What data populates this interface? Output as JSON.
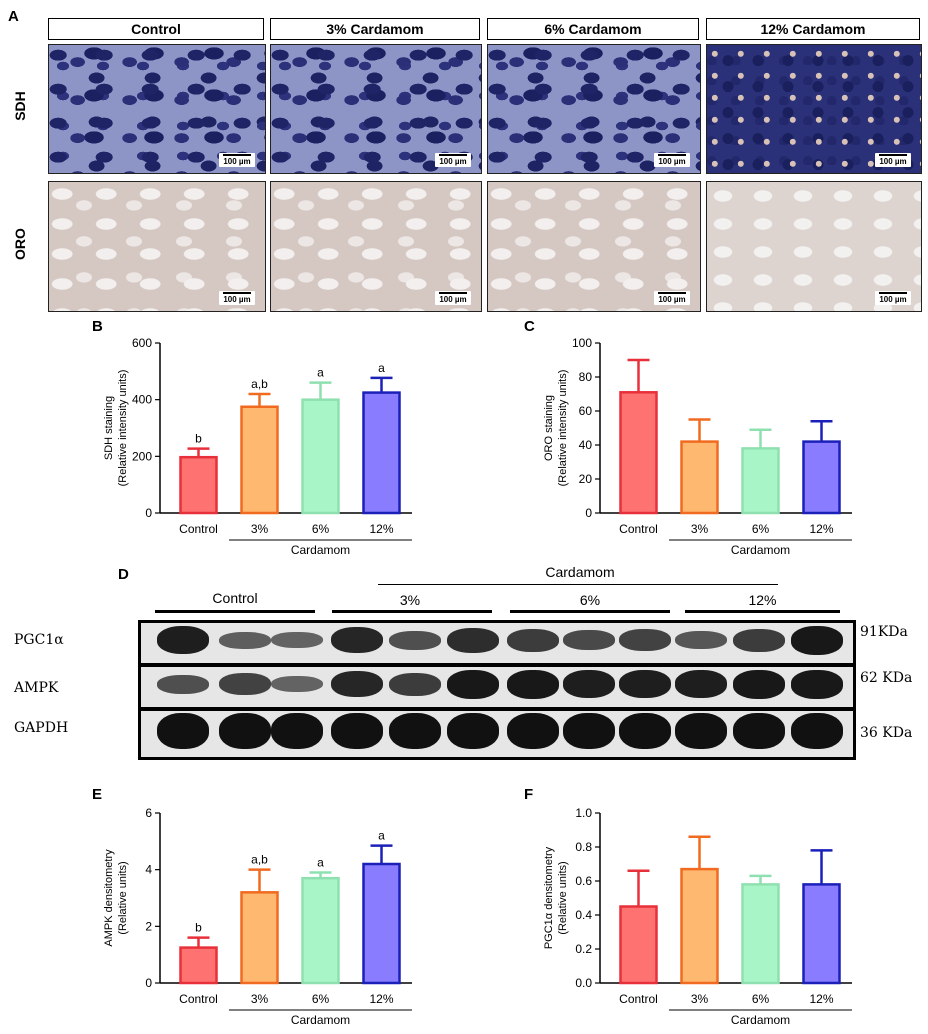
{
  "panel_a": {
    "letter": "A",
    "columns": [
      "Control",
      "3% Cardamom",
      "6% Cardamom",
      "12% Cardamom"
    ],
    "rows": [
      "SDH",
      "ORO"
    ],
    "scale_bar": "100 µm"
  },
  "panel_d": {
    "letter": "D",
    "group_top": "Cardamom",
    "groups": [
      "Control",
      "3%",
      "6%",
      "12%"
    ],
    "blots": [
      {
        "label": "PGC1α",
        "kda": "91KDa"
      },
      {
        "label": "AMPK",
        "kda": "62 KDa"
      },
      {
        "label": "GAPDH",
        "kda": "36 KDa"
      }
    ]
  },
  "colors": {
    "control": "#e8303a",
    "control_fill": "#ff7272",
    "c3": "#f06a20",
    "c3_fill": "#ffb870",
    "c6": "#8fe0b0",
    "c6_fill": "#a8f5c7",
    "c12": "#1b20b8",
    "c12_fill": "#8a7cff"
  },
  "chart_data": [
    {
      "panel": "B",
      "type": "bar",
      "categories": [
        "Control",
        "3%",
        "6%",
        "12%"
      ],
      "values": [
        197,
        375,
        400,
        425
      ],
      "errors": [
        30,
        45,
        60,
        52
      ],
      "annotations": [
        "b",
        "a,b",
        "a",
        "a"
      ],
      "ylabel": "SDH staining",
      "ylabel2": "(Relative intensity units)",
      "group_label": "Cardamom",
      "ylim": [
        0,
        600
      ],
      "yticks": [
        "0",
        "200",
        "400",
        "600"
      ],
      "ytick_values": [
        0,
        200,
        400,
        600
      ]
    },
    {
      "panel": "C",
      "type": "bar",
      "categories": [
        "Control",
        "3%",
        "6%",
        "12%"
      ],
      "values": [
        71,
        42,
        38,
        42
      ],
      "errors": [
        19,
        13,
        11,
        12
      ],
      "annotations": [
        "",
        "",
        "",
        ""
      ],
      "ylabel": "ORO staining",
      "ylabel2": "(Relative intensity units)",
      "group_label": "Cardamom",
      "ylim": [
        0,
        100
      ],
      "yticks": [
        "0",
        "20",
        "40",
        "60",
        "80",
        "100"
      ],
      "ytick_values": [
        0,
        20,
        40,
        60,
        80,
        100
      ]
    },
    {
      "panel": "E",
      "type": "bar",
      "categories": [
        "Control",
        "3%",
        "6%",
        "12%"
      ],
      "values": [
        1.25,
        3.2,
        3.7,
        4.2
      ],
      "errors": [
        0.35,
        0.8,
        0.2,
        0.65
      ],
      "annotations": [
        "b",
        "a,b",
        "a",
        "a"
      ],
      "ylabel": "AMPK densitometry",
      "ylabel2": "(Relative units)",
      "group_label": "Cardamom",
      "ylim": [
        0,
        6
      ],
      "yticks": [
        "0",
        "2",
        "4",
        "6"
      ],
      "ytick_values": [
        0,
        2,
        4,
        6
      ]
    },
    {
      "panel": "F",
      "type": "bar",
      "categories": [
        "Control",
        "3%",
        "6%",
        "12%"
      ],
      "values": [
        0.45,
        0.67,
        0.58,
        0.58
      ],
      "errors": [
        0.21,
        0.19,
        0.05,
        0.2
      ],
      "annotations": [
        "",
        "",
        "",
        ""
      ],
      "ylabel": "PGC1α densitometry",
      "ylabel2": "(Relative units)",
      "group_label": "Cardamom",
      "ylim": [
        0,
        1.0
      ],
      "yticks": [
        "0.0",
        "0.2",
        "0.4",
        "0.6",
        "0.8",
        "1.0"
      ],
      "ytick_values": [
        0,
        0.2,
        0.4,
        0.6,
        0.8,
        1.0
      ]
    }
  ]
}
